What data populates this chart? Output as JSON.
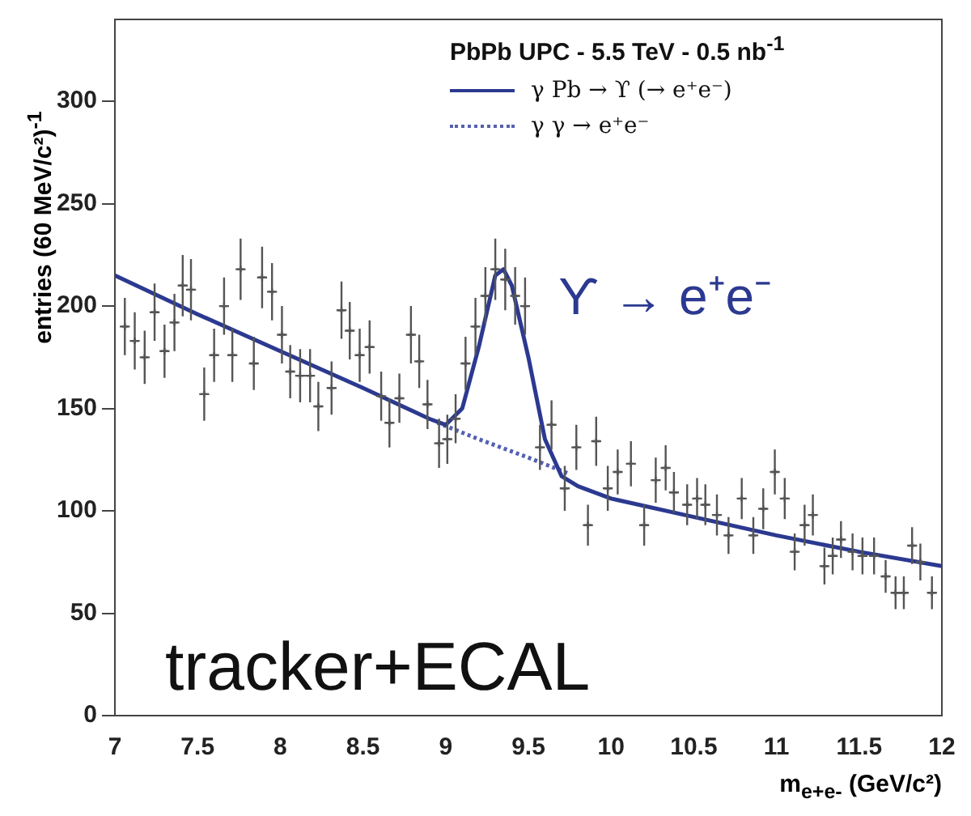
{
  "chart_data": {
    "type": "scatter",
    "legend_title": "PbPb UPC - 5.5 TeV - 0.5 nb$^{-1}$",
    "xlabel": "m$_{e+e-}$ (GeV/c²)",
    "ylabel": "entries (60 MeV/c²)$^{-1}$",
    "annotations": [
      "ϒ → e⁺e⁻",
      "tracker+ECAL"
    ],
    "xlim": [
      7,
      12
    ],
    "xticks": [
      7,
      7.5,
      8,
      8.5,
      9,
      9.5,
      10,
      10.5,
      11,
      11.5,
      12
    ],
    "ylim": [
      0,
      340
    ],
    "yticks": [
      0,
      50,
      100,
      150,
      200,
      250,
      300
    ],
    "grid": false,
    "legend": "top right",
    "series": [
      {
        "type": "scatter",
        "color": "#555555",
        "marker": "cross",
        "x": [
          7.06,
          7.12,
          7.18,
          7.24,
          7.3,
          7.36,
          7.41,
          7.46,
          7.54,
          7.6,
          7.66,
          7.71,
          7.76,
          7.84,
          7.89,
          7.95,
          8.01,
          8.06,
          8.12,
          8.18,
          8.23,
          8.31,
          8.37,
          8.42,
          8.48,
          8.54,
          8.61,
          8.66,
          8.72,
          8.79,
          8.84,
          8.89,
          8.96,
          9.01,
          9.06,
          9.12,
          9.18,
          9.24,
          9.3,
          9.36,
          9.42,
          9.48,
          9.57,
          9.64,
          9.72,
          9.79,
          9.86,
          9.91,
          9.98,
          10.04,
          10.12,
          10.2,
          10.27,
          10.33,
          10.38,
          10.46,
          10.52,
          10.57,
          10.64,
          10.71,
          10.79,
          10.86,
          10.92,
          10.99,
          11.05,
          11.11,
          11.17,
          11.22,
          11.29,
          11.34,
          11.39,
          11.46,
          11.52,
          11.59,
          11.66,
          11.72,
          11.77,
          11.82,
          11.87,
          11.94
        ],
        "values": [
          190,
          183,
          175,
          197,
          178,
          192,
          210,
          208,
          157,
          176,
          200,
          176,
          218,
          172,
          214,
          207,
          186,
          168,
          166,
          166,
          151,
          160,
          198,
          188,
          176,
          180,
          156,
          143,
          155,
          186,
          173,
          152,
          133,
          135,
          145,
          172,
          190,
          205,
          218,
          213,
          205,
          200,
          131,
          142,
          111,
          131,
          93,
          134,
          111,
          119,
          123,
          93,
          115,
          121,
          109,
          103,
          106,
          103,
          98,
          88,
          106,
          88,
          101,
          119,
          106,
          80,
          93,
          98,
          73,
          78,
          86,
          80,
          78,
          78,
          68,
          60,
          60,
          83,
          75,
          60
        ],
        "errors": [
          14,
          14,
          13,
          14,
          13,
          14,
          15,
          15,
          13,
          13,
          14,
          13,
          15,
          13,
          15,
          14,
          14,
          13,
          13,
          13,
          12,
          13,
          14,
          14,
          13,
          13,
          12,
          12,
          12,
          14,
          13,
          12,
          12,
          12,
          12,
          13,
          14,
          14,
          15,
          15,
          14,
          14,
          11,
          12,
          11,
          11,
          10,
          12,
          11,
          11,
          11,
          10,
          11,
          11,
          10,
          10,
          10,
          10,
          10,
          9,
          10,
          9,
          10,
          11,
          10,
          9,
          10,
          10,
          9,
          9,
          9,
          9,
          9,
          9,
          8,
          8,
          8,
          9,
          9,
          8
        ],
        "xerrors": [
          0.03,
          0.03,
          0.03,
          0.03,
          0.03,
          0.03,
          0.03,
          0.03,
          0.03,
          0.03,
          0.03,
          0.03,
          0.03,
          0.03,
          0.03,
          0.03,
          0.03,
          0.03,
          0.03,
          0.03,
          0.03,
          0.03,
          0.03,
          0.03,
          0.03,
          0.03,
          0.03,
          0.03,
          0.03,
          0.03,
          0.03,
          0.03,
          0.03,
          0.03,
          0.03,
          0.03,
          0.03,
          0.03,
          0.03,
          0.03,
          0.03,
          0.03,
          0.03,
          0.03,
          0.03,
          0.03,
          0.03,
          0.03,
          0.03,
          0.03,
          0.03,
          0.03,
          0.03,
          0.03,
          0.03,
          0.03,
          0.03,
          0.03,
          0.03,
          0.03,
          0.03,
          0.03,
          0.03,
          0.03,
          0.03,
          0.03,
          0.03,
          0.03,
          0.03,
          0.03,
          0.03,
          0.03,
          0.03,
          0.03,
          0.03,
          0.03,
          0.03,
          0.03,
          0.03,
          0.03
        ]
      },
      {
        "type": "line",
        "name": "γ Pb → ϒ (→ e⁺e⁻)",
        "color": "#2b3990",
        "line_style": "solid",
        "marker": "none",
        "x": [
          7,
          7.5,
          8,
          8.5,
          8.9,
          9,
          9.1,
          9.2,
          9.3,
          9.35,
          9.4,
          9.5,
          9.6,
          9.7,
          9.8,
          10,
          10.5,
          11,
          11.5,
          12
        ],
        "values": [
          215,
          196,
          178,
          160,
          145,
          142,
          150,
          180,
          215,
          218,
          210,
          175,
          135,
          117,
          112,
          106,
          97,
          88,
          80,
          73
        ]
      },
      {
        "type": "line",
        "name": "γ γ → e⁺e⁻",
        "color": "#5560b0",
        "line_style": "dotted",
        "marker": "none",
        "x": [
          8.95,
          9.2,
          9.5,
          9.75
        ],
        "values": [
          143,
          135,
          126,
          118
        ]
      }
    ]
  }
}
